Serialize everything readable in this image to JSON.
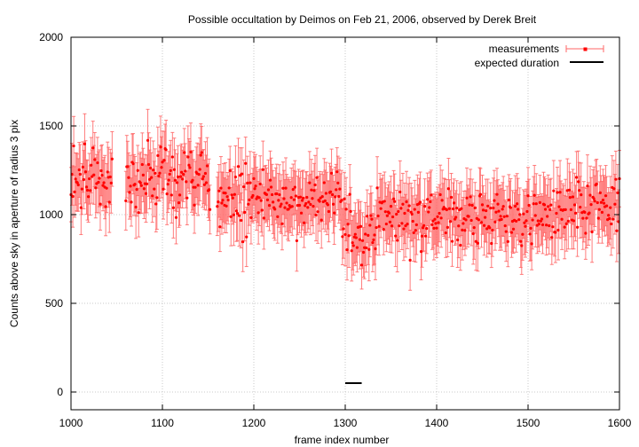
{
  "chart_data": {
    "type": "scatter",
    "title": "Possible occultation by Deimos on Feb 21, 2006, observed by Derek Breit",
    "xlabel": "frame index number",
    "ylabel": "Counts above sky in aperture of radius 3 pix",
    "xlim": [
      1000,
      1600
    ],
    "ylim": [
      -100,
      2000
    ],
    "x_ticks": [
      "1000",
      "1100",
      "1200",
      "1300",
      "1400",
      "1500",
      "1600"
    ],
    "y_ticks": [
      "0",
      "500",
      "1000",
      "1500",
      "2000"
    ],
    "grid": true,
    "legend_position": "top-right",
    "colors": {
      "measurements": "#ff0000",
      "error_bars": "#ff6666",
      "expected_duration": "#000000",
      "grid": "#c8c8c8"
    },
    "series": [
      {
        "name": "measurements",
        "style": "points-with-y-errorbars",
        "x_ranges": [
          [
            1000,
            1045
          ],
          [
            1060,
            1152
          ],
          [
            1160,
            1600
          ]
        ],
        "x_step": 1,
        "mean_profile": [
          {
            "x": 1000,
            "y": 1200
          },
          {
            "x": 1150,
            "y": 1200
          },
          {
            "x": 1160,
            "y": 1100
          },
          {
            "x": 1290,
            "y": 1080
          },
          {
            "x": 1300,
            "y": 950
          },
          {
            "x": 1320,
            "y": 880
          },
          {
            "x": 1340,
            "y": 1000
          },
          {
            "x": 1500,
            "y": 980
          },
          {
            "x": 1600,
            "y": 1050
          }
        ],
        "scatter_sigma": 150,
        "error_bar_halfwidth": 150
      },
      {
        "name": "expected duration",
        "style": "segment",
        "x": [
          1300,
          1318
        ],
        "y": [
          50,
          50
        ]
      }
    ]
  }
}
